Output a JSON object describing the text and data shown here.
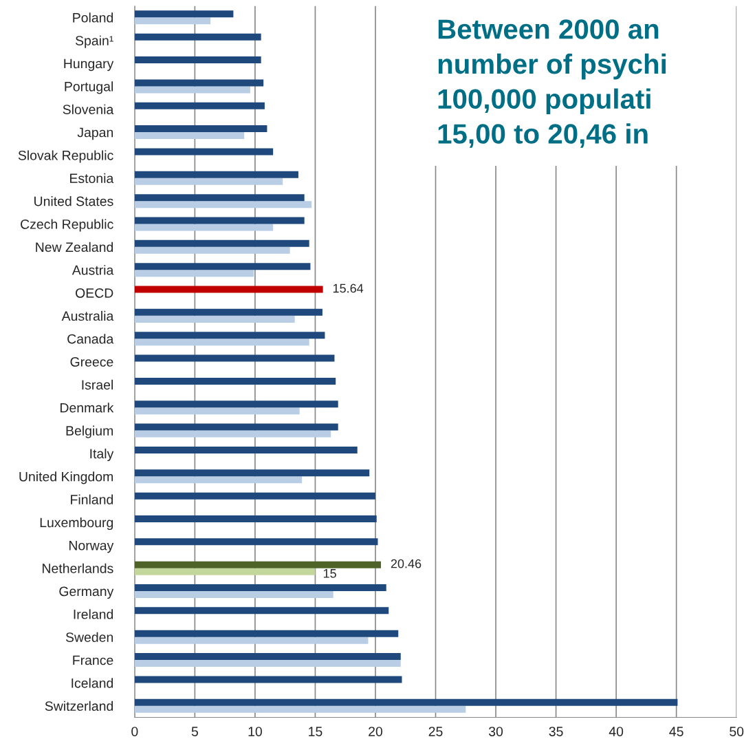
{
  "chart_data": {
    "type": "bar",
    "orientation": "horizontal",
    "title": "Between 2000 an\nnumber of psychi\n100,000 populati\n15,00 to 20,46 in",
    "categories": [
      "Poland",
      "Spain¹",
      "Hungary",
      "Portugal",
      "Slovenia",
      "Japan",
      "Slovak Republic",
      "Estonia",
      "United States",
      "Czech Republic",
      "New Zealand",
      "Austria",
      "OECD",
      "Australia",
      "Canada",
      "Greece",
      "Israel",
      "Denmark",
      "Belgium",
      "Italy",
      "United Kingdom",
      "Finland",
      "Luxembourg",
      "Norway",
      "Netherlands",
      "Germany",
      "Ireland",
      "Sweden",
      "France",
      "Iceland",
      "Switzerland"
    ],
    "series": [
      {
        "values": [
          8.2,
          10.5,
          10.5,
          10.7,
          10.8,
          11.0,
          11.5,
          13.6,
          14.1,
          14.1,
          14.5,
          14.6,
          15.64,
          15.6,
          15.8,
          16.6,
          16.7,
          16.9,
          16.9,
          18.5,
          19.5,
          20.0,
          20.1,
          20.2,
          20.46,
          20.9,
          21.1,
          21.9,
          22.1,
          22.2,
          45.1
        ],
        "colors": [
          "#1f497d",
          "#1f497d",
          "#1f497d",
          "#1f497d",
          "#1f497d",
          "#1f497d",
          "#1f497d",
          "#1f497d",
          "#1f497d",
          "#1f497d",
          "#1f497d",
          "#1f497d",
          "#c00000",
          "#1f497d",
          "#1f497d",
          "#1f497d",
          "#1f497d",
          "#1f497d",
          "#1f497d",
          "#1f497d",
          "#1f497d",
          "#1f497d",
          "#1f497d",
          "#1f497d",
          "#4f6228",
          "#1f497d",
          "#1f497d",
          "#1f497d",
          "#1f497d",
          "#1f497d",
          "#1f497d"
        ],
        "value_labels": [
          null,
          null,
          null,
          null,
          null,
          null,
          null,
          null,
          null,
          null,
          null,
          null,
          "15.64",
          null,
          null,
          null,
          null,
          null,
          null,
          null,
          null,
          null,
          null,
          null,
          "20.46",
          null,
          null,
          null,
          null,
          null,
          null
        ]
      },
      {
        "values": [
          6.3,
          null,
          null,
          9.6,
          null,
          9.1,
          null,
          12.3,
          14.7,
          11.5,
          12.9,
          9.9,
          null,
          13.3,
          14.5,
          null,
          null,
          13.7,
          16.3,
          null,
          13.9,
          null,
          null,
          null,
          15,
          16.5,
          null,
          19.4,
          22.1,
          null,
          27.5
        ],
        "colors": [
          "#b9cde5",
          "#b9cde5",
          "#b9cde5",
          "#b9cde5",
          "#b9cde5",
          "#b9cde5",
          "#b9cde5",
          "#b9cde5",
          "#b9cde5",
          "#b9cde5",
          "#b9cde5",
          "#b9cde5",
          "#b9cde5",
          "#b9cde5",
          "#b9cde5",
          "#b9cde5",
          "#b9cde5",
          "#b9cde5",
          "#b9cde5",
          "#b9cde5",
          "#b9cde5",
          "#b9cde5",
          "#b9cde5",
          "#b9cde5",
          "#c3d69b",
          "#b9cde5",
          "#b9cde5",
          "#b9cde5",
          "#b9cde5",
          "#b9cde5",
          "#b9cde5"
        ],
        "value_labels": [
          null,
          null,
          null,
          null,
          null,
          null,
          null,
          null,
          null,
          null,
          null,
          null,
          null,
          null,
          null,
          null,
          null,
          null,
          null,
          null,
          null,
          null,
          null,
          null,
          "15",
          null,
          null,
          null,
          null,
          null,
          null
        ]
      }
    ],
    "xlim": [
      0,
      50
    ],
    "xticks": [
      0,
      5,
      10,
      15,
      20,
      25,
      30,
      35,
      40,
      45,
      50
    ],
    "grid": "x",
    "legend": false
  }
}
